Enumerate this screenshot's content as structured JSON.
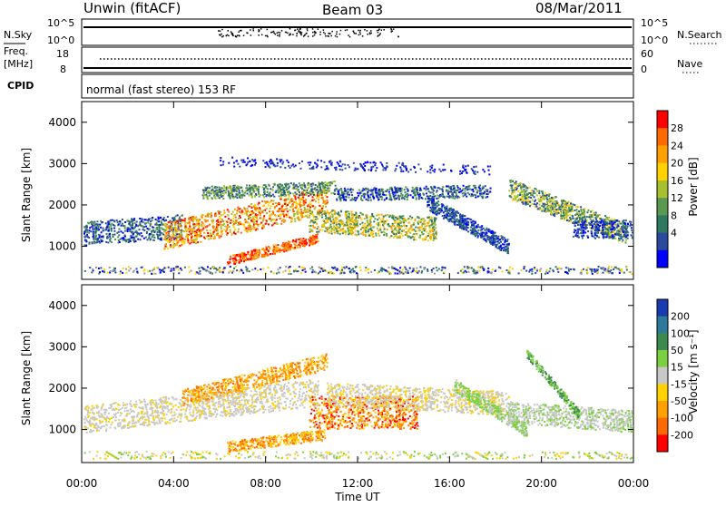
{
  "header": {
    "station": "Unwin (fitACF)",
    "beam": "Beam 03",
    "date": "08/Mar/2011"
  },
  "strip": {
    "nsky_label": "N.Sky",
    "nsky_ticks": [
      "10^5",
      "10^0"
    ],
    "nsearch_label": "N.Search",
    "nsearch_ticks": [
      "10^5",
      "10^0"
    ],
    "freq_label_1": "Freq.",
    "freq_label_2": "[MHz]",
    "freq_ticks": [
      "18",
      "8"
    ],
    "nave_label": "Nave",
    "nave_ticks": [
      "60",
      "0"
    ],
    "cpid_label": "CPID",
    "cpid_text": "normal (fast stereo) 153 RF"
  },
  "chart_data": [
    {
      "type": "heatmap",
      "title": "",
      "xlabel": "",
      "ylabel": "Slant Range [km]",
      "ylim": [
        200,
        4500
      ],
      "y_ticks": [
        "1000",
        "2000",
        "3000",
        "4000"
      ],
      "x_ticks": [
        "00:00",
        "04:00",
        "08:00",
        "12:00",
        "16:00",
        "20:00",
        "00:00"
      ],
      "colorbar": {
        "label": "Power [dB]",
        "ticks": [
          "28",
          "24",
          "20",
          "16",
          "12",
          "8",
          "4"
        ],
        "colors": [
          "#ff0000",
          "#ff6a00",
          "#ff9f00",
          "#ffd200",
          "#a6c030",
          "#5a9a50",
          "#2e7a60",
          "#2a4aa0",
          "#0000ff"
        ]
      }
    },
    {
      "type": "heatmap",
      "title": "",
      "xlabel": "Time UT",
      "ylabel": "Slant Range [km]",
      "ylim": [
        200,
        4500
      ],
      "y_ticks": [
        "1000",
        "2000",
        "3000",
        "4000"
      ],
      "x_ticks": [
        "00:00",
        "04:00",
        "08:00",
        "12:00",
        "16:00",
        "20:00",
        "00:00"
      ],
      "colorbar": {
        "label": "Velocity [m s⁻¹]",
        "ticks": [
          "200",
          "100",
          "50",
          "15",
          "-15",
          "-50",
          "-100",
          "-200"
        ],
        "colors": [
          "#1a3bb0",
          "#2e7a9a",
          "#3c8a50",
          "#7cd040",
          "#c8c8c8",
          "#ffd200",
          "#ff9f00",
          "#ff6a00",
          "#ff0000"
        ]
      }
    }
  ]
}
